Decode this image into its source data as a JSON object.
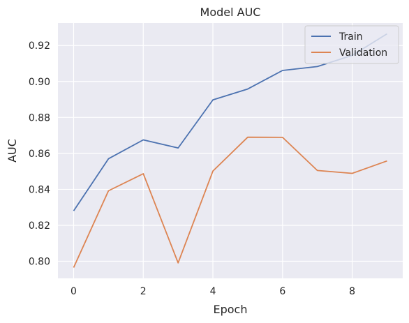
{
  "chart_data": {
    "type": "line",
    "title": "Model AUC",
    "xlabel": "Epoch",
    "ylabel": "AUC",
    "x": [
      0,
      1,
      2,
      3,
      4,
      5,
      6,
      7,
      8,
      9
    ],
    "xticks": [
      0,
      2,
      4,
      6,
      8
    ],
    "yticks": [
      0.8,
      0.82,
      0.84,
      0.86,
      0.88,
      0.9,
      0.92
    ],
    "ytick_labels": [
      "0.80",
      "0.82",
      "0.84",
      "0.86",
      "0.88",
      "0.90",
      "0.92"
    ],
    "xlim": [
      -0.45,
      9.45
    ],
    "ylim": [
      0.7905,
      0.9325
    ],
    "grid": true,
    "legend_position": "top-right",
    "series": [
      {
        "name": "Train",
        "color": "#4c72b0",
        "values": [
          0.828,
          0.857,
          0.8675,
          0.863,
          0.8898,
          0.8958,
          0.9061,
          0.9083,
          0.9145,
          0.9265
        ]
      },
      {
        "name": "Validation",
        "color": "#dd8452",
        "values": [
          0.7965,
          0.8392,
          0.8487,
          0.7991,
          0.8502,
          0.869,
          0.8689,
          0.8505,
          0.8489,
          0.8558
        ]
      }
    ],
    "background_color": "#eaeaf2",
    "grid_color": "#ffffff"
  }
}
